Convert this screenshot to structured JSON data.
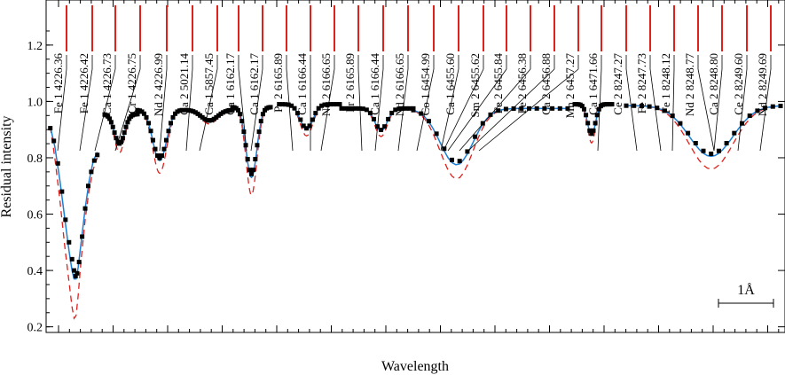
{
  "chart_data": {
    "type": "line",
    "xlabel": "Wavelength",
    "ylabel": "Residual intensity",
    "ylim": [
      0.18,
      1.36
    ],
    "yticks": [
      "0.2",
      "0.4",
      "0.6",
      "0.8",
      "1.0",
      "1.2"
    ],
    "ytick_values": [
      0.2,
      0.4,
      0.6,
      0.8,
      1.0,
      1.2
    ],
    "scale_bar_label": "1Å",
    "colors": {
      "observed": "#000000",
      "model_blue": "#1c7fd6",
      "model_red": "#e0201b",
      "line_marker": "#e0201b"
    },
    "series": [],
    "segments": [
      {
        "xrange": [
          0,
          1
        ],
        "observed": [
          [
            0.03,
            0.905
          ],
          [
            0.1,
            0.86
          ],
          [
            0.18,
            0.78
          ],
          [
            0.26,
            0.68
          ],
          [
            0.33,
            0.58
          ],
          [
            0.4,
            0.5
          ],
          [
            0.46,
            0.44
          ],
          [
            0.5,
            0.4
          ],
          [
            0.53,
            0.38
          ],
          [
            0.56,
            0.39
          ],
          [
            0.6,
            0.43
          ],
          [
            0.66,
            0.52
          ],
          [
            0.72,
            0.62
          ],
          [
            0.78,
            0.7
          ],
          [
            0.84,
            0.75
          ],
          [
            0.9,
            0.79
          ],
          [
            0.96,
            0.81
          ]
        ],
        "model_blue": [
          [
            0.03,
            0.91
          ],
          [
            0.12,
            0.84
          ],
          [
            0.22,
            0.72
          ],
          [
            0.32,
            0.58
          ],
          [
            0.4,
            0.47
          ],
          [
            0.46,
            0.4
          ],
          [
            0.5,
            0.37
          ],
          [
            0.54,
            0.37
          ],
          [
            0.58,
            0.41
          ],
          [
            0.64,
            0.5
          ],
          [
            0.72,
            0.62
          ],
          [
            0.8,
            0.72
          ],
          [
            0.88,
            0.79
          ],
          [
            0.96,
            0.82
          ]
        ],
        "model_red": [
          [
            0.03,
            0.91
          ],
          [
            0.12,
            0.8
          ],
          [
            0.22,
            0.65
          ],
          [
            0.32,
            0.48
          ],
          [
            0.4,
            0.36
          ],
          [
            0.46,
            0.27
          ],
          [
            0.5,
            0.23
          ],
          [
            0.54,
            0.24
          ],
          [
            0.58,
            0.31
          ],
          [
            0.64,
            0.44
          ],
          [
            0.72,
            0.58
          ],
          [
            0.8,
            0.69
          ],
          [
            0.88,
            0.76
          ],
          [
            0.96,
            0.8
          ]
        ]
      },
      {
        "xrange": [
          1,
          1.9
        ],
        "observed": [
          [
            0.0,
            0.95
          ],
          [
            0.1,
            0.94
          ],
          [
            0.2,
            0.9
          ],
          [
            0.3,
            0.86
          ],
          [
            0.4,
            0.85
          ],
          [
            0.5,
            0.86
          ],
          [
            0.6,
            0.91
          ],
          [
            0.7,
            0.95
          ],
          [
            0.8,
            0.96
          ],
          [
            0.9,
            0.97
          ]
        ],
        "model_blue": [
          [
            0.0,
            0.95
          ],
          [
            0.15,
            0.92
          ],
          [
            0.3,
            0.86
          ],
          [
            0.4,
            0.84
          ],
          [
            0.5,
            0.86
          ],
          [
            0.65,
            0.93
          ],
          [
            0.8,
            0.96
          ],
          [
            0.9,
            0.97
          ]
        ],
        "model_red": [
          [
            0.0,
            0.95
          ],
          [
            0.15,
            0.92
          ],
          [
            0.3,
            0.86
          ],
          [
            0.4,
            0.84
          ],
          [
            0.5,
            0.86
          ],
          [
            0.65,
            0.93
          ],
          [
            0.8,
            0.96
          ],
          [
            0.9,
            0.97
          ]
        ]
      }
    ],
    "line_ids": [
      {
        "element": "Fe 1",
        "wavelength": "4226.36"
      },
      {
        "element": "Fe 1",
        "wavelength": "4226.42"
      },
      {
        "element": "Ca 1",
        "wavelength": "4226.73"
      },
      {
        "element": "Cr 1",
        "wavelength": "4226.75"
      },
      {
        "element": "Nd 2",
        "wavelength": "4226.99"
      },
      {
        "element": "Ca 2",
        "wavelength": "5021.14"
      },
      {
        "element": "Ca 1",
        "wavelength": "5857.45"
      },
      {
        "element": "Ca 1",
        "wavelength": "6162.17"
      },
      {
        "element": "Ca 1",
        "wavelength": "6162.17"
      },
      {
        "element": "Pr 2",
        "wavelength": "6165.89"
      },
      {
        "element": "Ca 1",
        "wavelength": "6166.44"
      },
      {
        "element": "Nd 2",
        "wavelength": "6166.65"
      },
      {
        "element": "Pr 2",
        "wavelength": "6165.89"
      },
      {
        "element": "Ca 1",
        "wavelength": "6166.44"
      },
      {
        "element": "Nd 2",
        "wavelength": "6166.65"
      },
      {
        "element": "Co 1",
        "wavelength": "6454.99"
      },
      {
        "element": "Ca 1",
        "wavelength": "6455.60"
      },
      {
        "element": "Sm 2",
        "wavelength": "6455.62"
      },
      {
        "element": "Fe 2",
        "wavelength": "6455.84"
      },
      {
        "element": "Fe 2",
        "wavelength": "6456.38"
      },
      {
        "element": "Ca 2",
        "wavelength": "6456.88"
      },
      {
        "element": "Mn 2",
        "wavelength": "6457.27"
      },
      {
        "element": "Ca 1",
        "wavelength": "6471.66"
      },
      {
        "element": "Ce 2",
        "wavelength": "8247.27"
      },
      {
        "element": "Fe 2",
        "wavelength": "8247.73"
      },
      {
        "element": "Fe 1",
        "wavelength": "8248.12"
      },
      {
        "element": "Nd 2",
        "wavelength": "8248.77"
      },
      {
        "element": "Ca 2",
        "wavelength": "8248.80"
      },
      {
        "element": "Ce 2",
        "wavelength": "8249.60"
      },
      {
        "element": "Nd 2",
        "wavelength": "8249.69"
      }
    ]
  }
}
